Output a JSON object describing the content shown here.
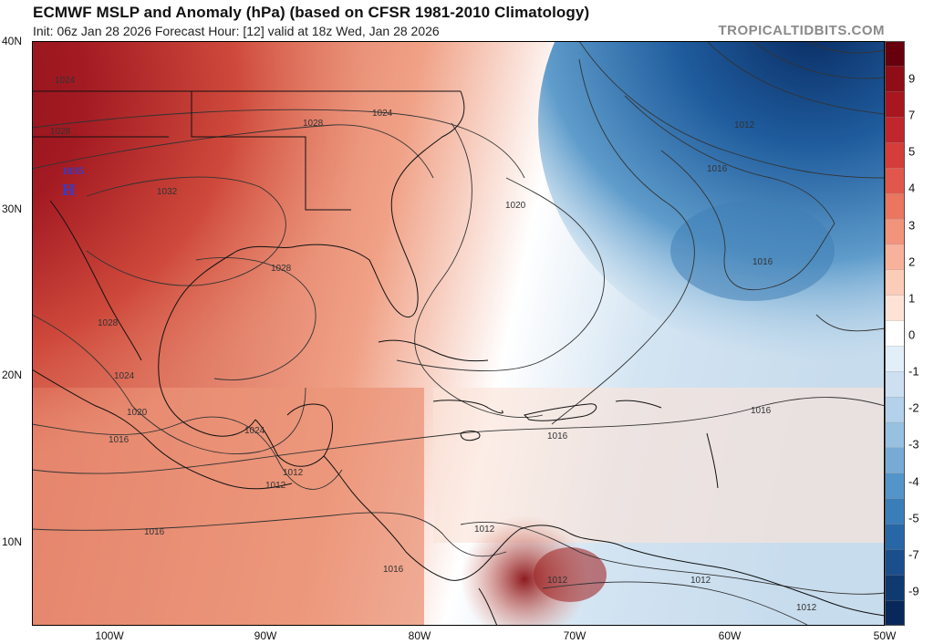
{
  "header": {
    "title": "ECMWF MSLP and Anomaly (hPa) (based on CFSR 1981-2010 Climatology)",
    "subtitle": "Init: 06z Jan 28 2026   Forecast Hour: [12]   valid at 18z Wed, Jan 28 2026",
    "brand": "TROPICALTIDBITS.COM"
  },
  "lat_labels": [
    "40N",
    "30N",
    "20N",
    "10N"
  ],
  "lon_labels": [
    "100W",
    "90W",
    "80W",
    "70W",
    "60W",
    "50W"
  ],
  "colorbar": {
    "labels": [
      "9",
      "7",
      "5",
      "4",
      "3",
      "2",
      "1",
      "0",
      "-1",
      "-2",
      "-3",
      "-4",
      "-5",
      "-7",
      "-9"
    ],
    "colors": [
      "#67000d",
      "#8e0d17",
      "#a8161f",
      "#c0272d",
      "#d43d3a",
      "#e2574c",
      "#ea7660",
      "#f2937b",
      "#f8b29c",
      "#fbcdb9",
      "#fde3d6",
      "#ffffff",
      "#e2eef8",
      "#cce0f1",
      "#b3d1ea",
      "#97c0e1",
      "#77abd6",
      "#5395c8",
      "#3a7eb9",
      "#2767a6",
      "#1a4f8c",
      "#0e3a70",
      "#08275a"
    ]
  },
  "isobars": {
    "high_pressure_center": {
      "symbol": "H",
      "value": "1035"
    },
    "labels": [
      "1024",
      "1028",
      "1032",
      "1028",
      "1024",
      "1028",
      "1028",
      "1024",
      "1020",
      "1016",
      "1020",
      "1024",
      "1016",
      "1016",
      "1012",
      "1016",
      "1016",
      "1016",
      "1012",
      "1016",
      "1012",
      "1012",
      "1012",
      "1012",
      "1012"
    ]
  },
  "colors": {
    "warm": "#b2182b",
    "cool": "#2166ac",
    "neutral": "#ffffff"
  }
}
